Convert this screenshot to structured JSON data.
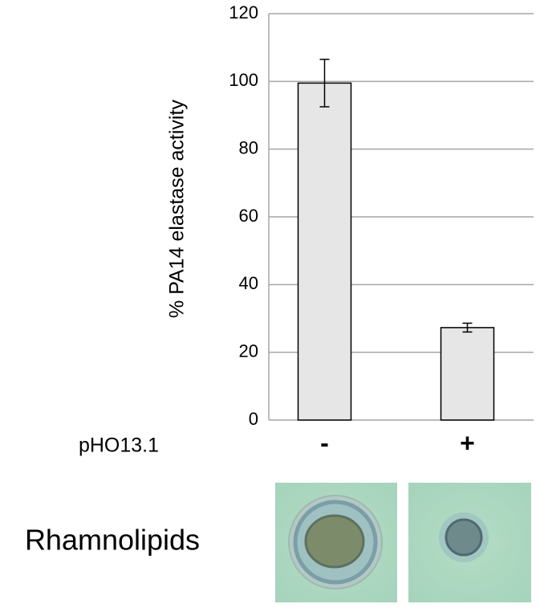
{
  "chart_data": {
    "type": "bar",
    "ylabel": "% PA14 elastase activity",
    "row_label": "pHO13.1",
    "categories": [
      "-",
      "+"
    ],
    "values": [
      99.5,
      27.3
    ],
    "errors": [
      7,
      1.3
    ],
    "color": "#e6e6e6",
    "ylim": [
      0,
      120
    ],
    "yticks": [
      0,
      20,
      40,
      60,
      80,
      100,
      120
    ],
    "grid": true,
    "image_label": "Rhamnolipids"
  }
}
